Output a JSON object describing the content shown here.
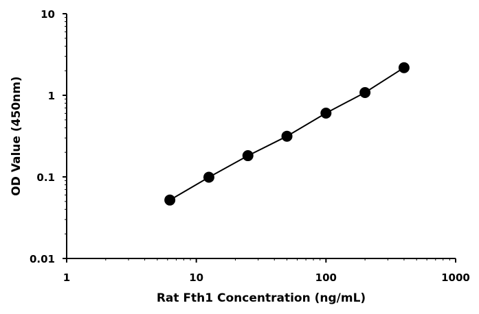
{
  "chart_data": {
    "type": "scatter",
    "title": "",
    "xlabel": "Rat Fth1 Concentration  (ng/mL)",
    "ylabel": "OD Value (450nm)",
    "x_scale": "log",
    "y_scale": "log",
    "xlim": [
      1,
      1000
    ],
    "ylim": [
      0.01,
      10
    ],
    "x_ticks": [
      1,
      10,
      100,
      1000
    ],
    "x_tick_labels": [
      "1",
      "10",
      "100",
      "1000"
    ],
    "y_ticks": [
      0.01,
      0.1,
      1,
      10
    ],
    "y_tick_labels": [
      "0.01",
      "0.1",
      "1",
      "10"
    ],
    "grid": false,
    "legend": "none",
    "series": [
      {
        "x": [
          6.25,
          12.5,
          25,
          50,
          100,
          200,
          400
        ],
        "y": [
          0.052,
          0.099,
          0.182,
          0.315,
          0.605,
          1.08,
          2.18
        ],
        "color": "#000000",
        "marker": "circle",
        "line": true
      }
    ]
  }
}
